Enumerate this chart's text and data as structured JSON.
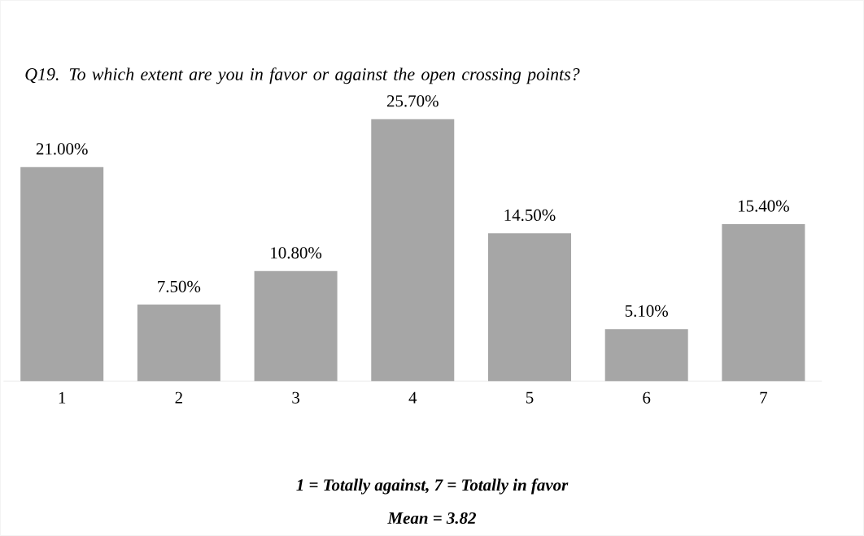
{
  "chart_data": {
    "type": "bar",
    "title": "Q19. To which extent are you in favor or against the open crossing points?",
    "categories": [
      "1",
      "2",
      "3",
      "4",
      "5",
      "6",
      "7"
    ],
    "values": [
      21.0,
      7.5,
      10.8,
      25.7,
      14.5,
      5.1,
      15.4
    ],
    "value_labels": [
      "21.00%",
      "7.50%",
      "10.80%",
      "25.70%",
      "14.50%",
      "5.10%",
      "15.40%"
    ],
    "color": "#a6a6a6",
    "xlabel": "1 = Totally against, 7 = Totally in favor",
    "annotations": [
      "Mean = 3.82"
    ]
  }
}
